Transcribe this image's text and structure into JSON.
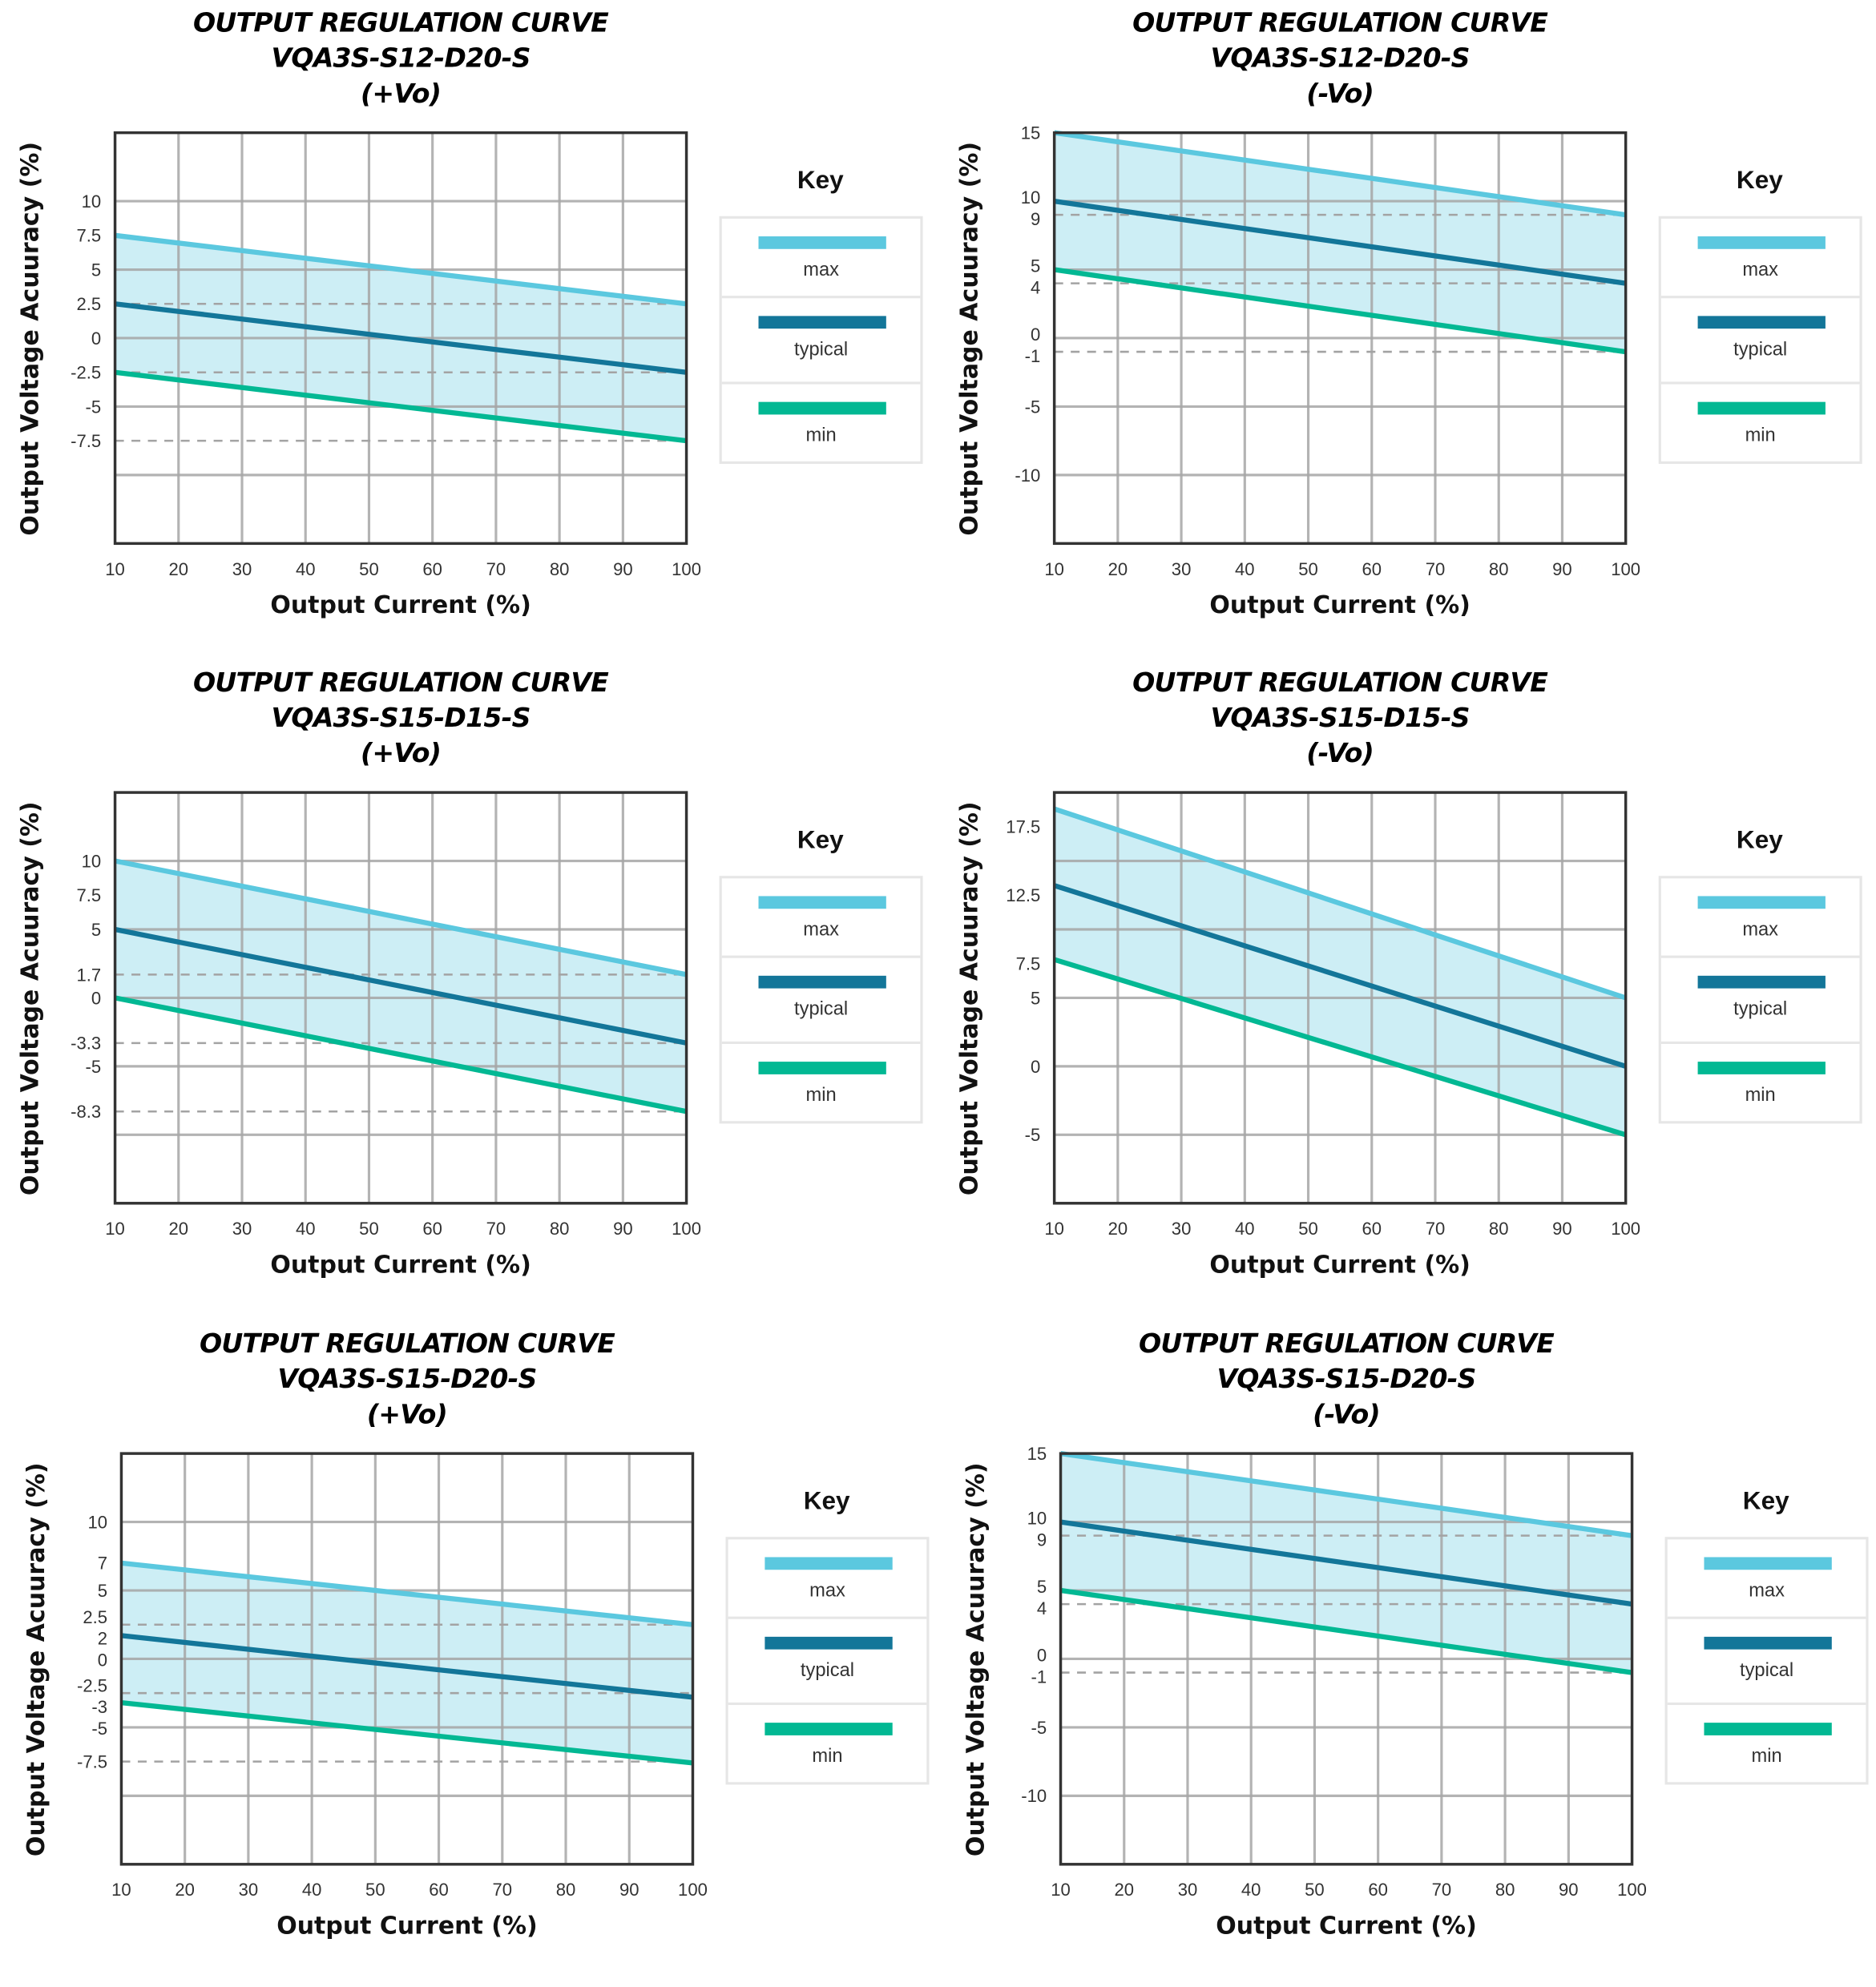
{
  "chart_data": [
    {
      "type": "line",
      "title": [
        "OUTPUT REGULATION CURVE",
        "VQA3S-S12-D20-S",
        "(+Vo)"
      ],
      "xlabel": "Output Current (%)",
      "ylabel": "Output Voltage Acuuracy (%)",
      "xlim": [
        10,
        100
      ],
      "xticks": [
        10,
        20,
        30,
        40,
        50,
        60,
        70,
        80,
        90,
        100
      ],
      "ylim": [
        -15,
        15
      ],
      "yticks": [
        "10",
        "7.5",
        "5",
        "2.5",
        "0",
        "-2.5",
        "-5",
        "-7.5"
      ],
      "grid_y": [
        10,
        5,
        0,
        -5,
        -10
      ],
      "reference_lines": [
        2.5,
        -2.5,
        -7.5
      ],
      "series": [
        {
          "name": "max",
          "color": "#5bc8df",
          "x": [
            10,
            100
          ],
          "values": [
            7.5,
            2.5
          ]
        },
        {
          "name": "typical",
          "color": "#137699",
          "x": [
            10,
            100
          ],
          "values": [
            2.5,
            -2.5
          ]
        },
        {
          "name": "min",
          "color": "#02b893",
          "x": [
            10,
            100
          ],
          "values": [
            -2.5,
            -7.5
          ]
        }
      ],
      "legend": {
        "title": "Key",
        "position": "right"
      }
    },
    {
      "type": "line",
      "title": [
        "OUTPUT REGULATION CURVE",
        "VQA3S-S12-D20-S",
        "(-Vo)"
      ],
      "xlabel": "Output Current (%)",
      "ylabel": "Output Voltage Acuuracy (%)",
      "xlim": [
        10,
        100
      ],
      "xticks": [
        10,
        20,
        30,
        40,
        50,
        60,
        70,
        80,
        90,
        100
      ],
      "ylim": [
        -15,
        15
      ],
      "yticks": [
        "15",
        "10",
        "9",
        "5",
        "4",
        "0",
        "-1",
        "-5",
        "-10"
      ],
      "grid_y": [
        10,
        5,
        0,
        -5,
        -10
      ],
      "reference_lines": [
        9,
        4,
        -1
      ],
      "series": [
        {
          "name": "max",
          "color": "#5bc8df",
          "x": [
            10,
            100
          ],
          "values": [
            15,
            9
          ]
        },
        {
          "name": "typical",
          "color": "#137699",
          "x": [
            10,
            100
          ],
          "values": [
            10,
            4
          ]
        },
        {
          "name": "min",
          "color": "#02b893",
          "x": [
            10,
            100
          ],
          "values": [
            5,
            -1
          ]
        }
      ],
      "legend": {
        "title": "Key",
        "position": "right"
      }
    },
    {
      "type": "line",
      "title": [
        "OUTPUT REGULATION CURVE",
        "VQA3S-S15-D15-S",
        "(+Vo)"
      ],
      "xlabel": "Output Current (%)",
      "ylabel": "Output Voltage Acuuracy (%)",
      "xlim": [
        10,
        100
      ],
      "xticks": [
        10,
        20,
        30,
        40,
        50,
        60,
        70,
        80,
        90,
        100
      ],
      "ylim": [
        -15,
        15
      ],
      "yticks": [
        "10",
        "7.5",
        "5",
        "1.7",
        "0",
        "-3.3",
        "-5",
        "-8.3"
      ],
      "grid_y": [
        10,
        5,
        0,
        -5,
        -10
      ],
      "reference_lines": [
        1.7,
        -3.3,
        -8.3
      ],
      "series": [
        {
          "name": "max",
          "color": "#5bc8df",
          "x": [
            10,
            100
          ],
          "values": [
            10,
            1.7
          ]
        },
        {
          "name": "typical",
          "color": "#137699",
          "x": [
            10,
            100
          ],
          "values": [
            5,
            -3.3
          ]
        },
        {
          "name": "min",
          "color": "#02b893",
          "x": [
            10,
            100
          ],
          "values": [
            0,
            -8.3
          ]
        }
      ],
      "legend": {
        "title": "Key",
        "position": "right"
      }
    },
    {
      "type": "line",
      "title": [
        "OUTPUT REGULATION CURVE",
        "VQA3S-S15-D15-S",
        "(-Vo)"
      ],
      "xlabel": "Output Current (%)",
      "ylabel": "Output Voltage Acuuracy (%)",
      "xlim": [
        10,
        100
      ],
      "xticks": [
        10,
        20,
        30,
        40,
        50,
        60,
        70,
        80,
        90,
        100
      ],
      "ylim": [
        -10,
        20
      ],
      "yticks": [
        "17.5",
        "12.5",
        "7.5",
        "5",
        "0",
        "-5"
      ],
      "grid_y": [
        15,
        10,
        5,
        0,
        -5
      ],
      "reference_lines": [],
      "series": [
        {
          "name": "max",
          "color": "#5bc8df",
          "x": [
            10,
            100
          ],
          "values": [
            18.8,
            5
          ]
        },
        {
          "name": "typical",
          "color": "#137699",
          "x": [
            10,
            100
          ],
          "values": [
            13.2,
            0
          ]
        },
        {
          "name": "min",
          "color": "#02b893",
          "x": [
            10,
            100
          ],
          "values": [
            7.8,
            -5
          ]
        }
      ],
      "legend": {
        "title": "Key",
        "position": "right"
      }
    },
    {
      "type": "line",
      "title": [
        "OUTPUT REGULATION CURVE",
        "VQA3S-S15-D20-S",
        "(+Vo)"
      ],
      "xlabel": "Output Current (%)",
      "ylabel": "Output Voltage Acuuracy (%)",
      "xlim": [
        10,
        100
      ],
      "xticks": [
        10,
        20,
        30,
        40,
        50,
        60,
        70,
        80,
        90,
        100
      ],
      "ylim": [
        -15,
        15
      ],
      "yticks": [
        "10",
        "7",
        "5",
        "2.5",
        "2",
        "0",
        "-2.5",
        "-3",
        "-5",
        "-7.5"
      ],
      "grid_y": [
        10,
        5,
        0,
        -5,
        -10
      ],
      "reference_lines": [
        2.5,
        -2.5,
        -7.5
      ],
      "series": [
        {
          "name": "max",
          "color": "#5bc8df",
          "x": [
            10,
            100
          ],
          "values": [
            7,
            2.5
          ]
        },
        {
          "name": "typical",
          "color": "#137699",
          "x": [
            10,
            100
          ],
          "values": [
            1.7,
            -2.8
          ]
        },
        {
          "name": "min",
          "color": "#02b893",
          "x": [
            10,
            100
          ],
          "values": [
            -3.2,
            -7.6
          ]
        }
      ],
      "legend": {
        "title": "Key",
        "position": "right"
      }
    },
    {
      "type": "line",
      "title": [
        "OUTPUT REGULATION CURVE",
        "VQA3S-S15-D20-S",
        "(-Vo)"
      ],
      "xlabel": "Output Current (%)",
      "ylabel": "Output Voltage Acuuracy (%)",
      "xlim": [
        10,
        100
      ],
      "xticks": [
        10,
        20,
        30,
        40,
        50,
        60,
        70,
        80,
        90,
        100
      ],
      "ylim": [
        -15,
        15
      ],
      "yticks": [
        "15",
        "10",
        "9",
        "5",
        "4",
        "0",
        "-1",
        "-5",
        "-10"
      ],
      "grid_y": [
        10,
        5,
        0,
        -5,
        -10
      ],
      "reference_lines": [
        9,
        4,
        -1
      ],
      "series": [
        {
          "name": "max",
          "color": "#5bc8df",
          "x": [
            10,
            100
          ],
          "values": [
            15,
            9
          ]
        },
        {
          "name": "typical",
          "color": "#137699",
          "x": [
            10,
            100
          ],
          "values": [
            10,
            4
          ]
        },
        {
          "name": "min",
          "color": "#02b893",
          "x": [
            10,
            100
          ],
          "values": [
            5,
            -1
          ]
        }
      ],
      "legend": {
        "title": "Key",
        "position": "right"
      }
    }
  ]
}
